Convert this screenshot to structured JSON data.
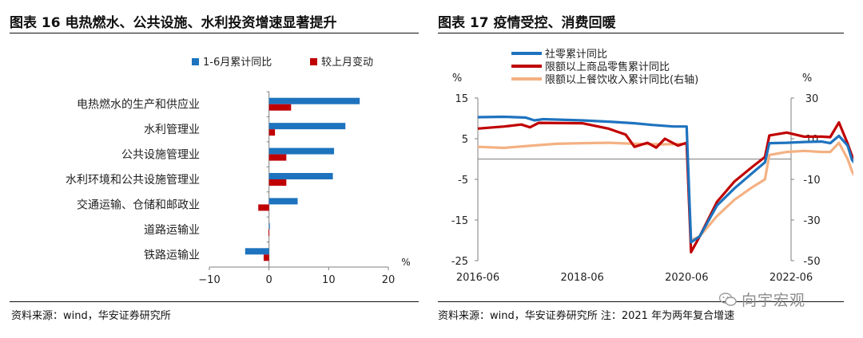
{
  "left_figure": {
    "title": "图表 16 电热燃水、公共设施、水利投资增速显著提升",
    "source": "资料来源：wind，华安证券研究所"
  },
  "right_figure": {
    "title": "图表 17 疫情受控、消费回暖",
    "source": "资料来源：wind，华安证券研究所 注：2021 年为两年复合增速"
  },
  "watermark": "向宇宏观",
  "colors": {
    "blue": "#1e73be",
    "red": "#c00000",
    "peach": "#f4b183",
    "axis": "#7f7f7f"
  },
  "chart_data": [
    {
      "type": "bar",
      "orientation": "horizontal",
      "categories": [
        "电热燃水的生产和供应业",
        "水利管理业",
        "公共设施管理业",
        "水利环境和公共设施管理业",
        "交通运输、仓储和邮政业",
        "道路运输业",
        "铁路运输业"
      ],
      "series": [
        {
          "name": "1-6月累计同比",
          "color": "#1e73be",
          "values": [
            15.2,
            12.8,
            10.9,
            10.7,
            4.8,
            0.1,
            -4.0
          ]
        },
        {
          "name": "较上月变动",
          "color": "#c00000",
          "values": [
            3.7,
            1.0,
            2.9,
            2.9,
            -1.8,
            -0.1,
            -0.9
          ]
        }
      ],
      "xlim": [
        -10,
        20
      ],
      "xticks": [
        "−10",
        "0",
        "10",
        "20"
      ],
      "xunit": "%",
      "legend": "top"
    },
    {
      "type": "line",
      "x_start": "2016-06",
      "x_end": "2022-06",
      "xticks": [
        "2016-06",
        "2018-06",
        "2020-06",
        "2022-06"
      ],
      "left_axis": {
        "unit": "%",
        "ylim": [
          -25,
          15
        ],
        "ticks": [
          "15",
          "5",
          "-5",
          "-15",
          "-25"
        ]
      },
      "right_axis": {
        "unit": "%",
        "ylim": [
          -50,
          30
        ],
        "ticks": [
          "30",
          "10",
          "-10",
          "-30",
          "-50"
        ]
      },
      "legend": "top-left",
      "series": [
        {
          "name": "社零累计同比",
          "color": "#1e73be",
          "axis": "left",
          "values": [
            [
              0,
              10.3
            ],
            [
              6,
              10.4
            ],
            [
              11,
              10.2
            ],
            [
              13,
              9.5
            ],
            [
              15,
              9.8
            ],
            [
              24,
              9.5
            ],
            [
              30,
              9.2
            ],
            [
              36,
              8.8
            ],
            [
              40,
              8.4
            ],
            [
              45,
              8.0
            ],
            [
              48,
              8.0
            ],
            [
              49,
              -20.5
            ],
            [
              51,
              -19.0
            ],
            [
              55,
              -11.4
            ],
            [
              59,
              -7.2
            ],
            [
              63,
              -3.5
            ],
            [
              66,
              -0.8
            ],
            [
              67,
              3.9
            ],
            [
              71,
              4.0
            ],
            [
              75,
              4.2
            ],
            [
              79,
              4.3
            ],
            [
              81,
              3.9
            ],
            [
              83,
              5.7
            ],
            [
              85,
              3.3
            ],
            [
              86,
              -0.2
            ],
            [
              87,
              -1.5
            ],
            [
              89,
              -0.7
            ]
          ]
        },
        {
          "name": "限额以上商品零售累计同比",
          "color": "#c00000",
          "axis": "left",
          "values": [
            [
              0,
              7.5
            ],
            [
              6,
              8.0
            ],
            [
              10,
              8.5
            ],
            [
              12,
              7.8
            ],
            [
              14,
              8.9
            ],
            [
              24,
              8.8
            ],
            [
              30,
              7.5
            ],
            [
              34,
              6.0
            ],
            [
              36,
              3.0
            ],
            [
              39,
              4.0
            ],
            [
              41,
              2.8
            ],
            [
              43,
              5.0
            ],
            [
              46,
              3.3
            ],
            [
              48,
              4.0
            ],
            [
              49,
              -22.9
            ],
            [
              51,
              -19.0
            ],
            [
              55,
              -10.5
            ],
            [
              59,
              -5.5
            ],
            [
              63,
              -2.0
            ],
            [
              66,
              0.5
            ],
            [
              67,
              5.8
            ],
            [
              71,
              6.5
            ],
            [
              75,
              5.5
            ],
            [
              79,
              5.5
            ],
            [
              81,
              5.4
            ],
            [
              83,
              9.0
            ],
            [
              85,
              3.8
            ],
            [
              86,
              0.8
            ],
            [
              87,
              -0.5
            ],
            [
              88,
              1.5
            ],
            [
              89,
              1.3
            ]
          ]
        },
        {
          "name": "限额以上餐饮收入累计同比(右轴)",
          "color": "#f4b183",
          "axis": "right",
          "values": [
            [
              0,
              6.0
            ],
            [
              6,
              5.5
            ],
            [
              12,
              6.5
            ],
            [
              18,
              7.5
            ],
            [
              24,
              7.8
            ],
            [
              30,
              8.0
            ],
            [
              36,
              7.5
            ],
            [
              42,
              7.2
            ],
            [
              48,
              7.5
            ],
            [
              49,
              -40.0
            ],
            [
              51,
              -38.0
            ],
            [
              55,
              -28.0
            ],
            [
              59,
              -20.0
            ],
            [
              63,
              -14.0
            ],
            [
              66,
              -10.0
            ],
            [
              67,
              2.0
            ],
            [
              71,
              3.5
            ],
            [
              75,
              4.0
            ],
            [
              79,
              3.5
            ],
            [
              81,
              3.5
            ],
            [
              83,
              8.0
            ],
            [
              85,
              0.0
            ],
            [
              86,
              -6.0
            ],
            [
              87,
              -10.0
            ],
            [
              89,
              -7.7
            ]
          ]
        }
      ]
    }
  ]
}
